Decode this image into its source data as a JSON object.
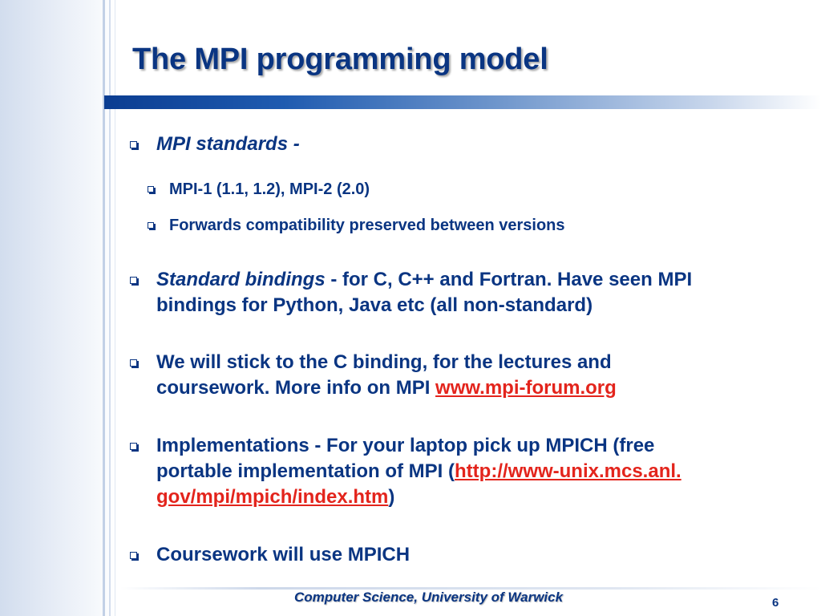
{
  "slide": {
    "title": "The MPI programming model",
    "footer": "Computer Science, University of Warwick",
    "page_number": "6"
  },
  "bullets": {
    "b1": {
      "label": "MPI standards -"
    },
    "b1_sub1": "MPI-1 (1.1, 1.2), MPI-2 (2.0)",
    "b1_sub2": "Forwards compatibility preserved between versions",
    "b2": {
      "italic": "Standard bindings",
      "line1_rest": " - for C, C++ and Fortran. Have seen MPI",
      "line2": "bindings for Python, Java etc (all non-standard)"
    },
    "b3": {
      "line1": "We will stick to the C binding, for the lectures and",
      "line2": "coursework. More info on MPI ",
      "link": "www.mpi-forum.org"
    },
    "b4": {
      "line1": "Implementations - For your laptop pick up MPICH (free",
      "line2": "portable implementation of MPI (",
      "link_line1": "http://www-unix.mcs.anl.",
      "link_line2": "gov/mpi/mpich/index.htm",
      "closing": ")"
    },
    "b5": "Coursework will use MPICH"
  },
  "colors": {
    "text": "#0a3582",
    "link": "#e3241c",
    "accent_bar": "#0b3d91"
  }
}
